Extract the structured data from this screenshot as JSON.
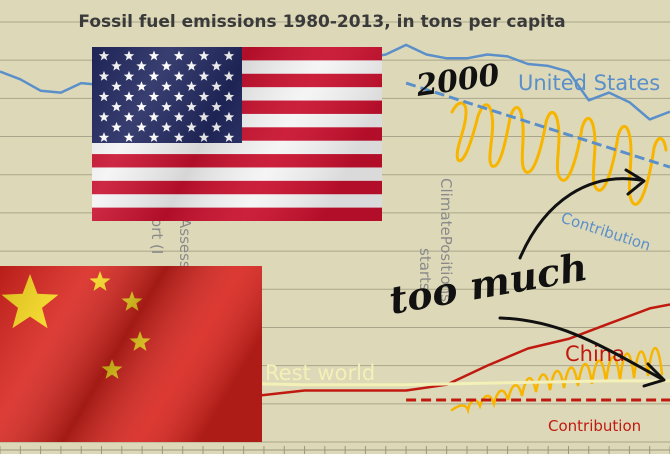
{
  "chart_data": {
    "type": "line",
    "title": "Fossil fuel emissions 1980-2013, in tons per capita",
    "x_range": [
      1980,
      2013
    ],
    "y_range": [
      0,
      22
    ],
    "grid": true,
    "series": [
      {
        "name": "United States",
        "color": "#5b8fc9",
        "x": [
          1980,
          1981,
          1982,
          1983,
          1984,
          1985,
          1986,
          1987,
          1988,
          1989,
          1990,
          1991,
          1992,
          1993,
          1994,
          1995,
          1996,
          1997,
          1998,
          1999,
          2000,
          2001,
          2002,
          2003,
          2004,
          2005,
          2006,
          2007,
          2008,
          2009,
          2010,
          2011,
          2012,
          2013
        ],
        "values": [
          19.4,
          19.0,
          18.4,
          18.3,
          18.8,
          18.7,
          18.8,
          19.3,
          19.9,
          20.0,
          19.7,
          19.4,
          19.5,
          19.6,
          19.8,
          19.8,
          20.1,
          20.3,
          20.1,
          20.3,
          20.8,
          20.3,
          20.1,
          20.1,
          20.3,
          20.2,
          19.8,
          19.7,
          19.4,
          17.9,
          18.3,
          17.8,
          16.9,
          17.3
        ]
      },
      {
        "name": "China",
        "color": "#c01a10",
        "x": [
          1980,
          1985,
          1990,
          1995,
          2000,
          2002,
          2004,
          2006,
          2008,
          2010,
          2012,
          2013
        ],
        "values": [
          1.6,
          1.9,
          2.1,
          2.7,
          2.7,
          3.0,
          4.0,
          4.9,
          5.4,
          6.2,
          7.0,
          7.2
        ]
      },
      {
        "name": "Rest world",
        "color": "#f3f0b8",
        "x": [
          1980,
          1985,
          1990,
          1995,
          2000,
          2005,
          2010,
          2013
        ],
        "values": [
          3.3,
          3.1,
          3.1,
          3.0,
          3.0,
          3.1,
          3.2,
          3.2
        ]
      }
    ],
    "projections": [
      {
        "name": "Contribution",
        "color": "#5b8fc9",
        "style": "dashed",
        "x": [
          2000,
          2013
        ],
        "values": [
          18.8,
          14.4
        ]
      },
      {
        "name": "Contribution",
        "color": "#c01a10",
        "style": "dashed",
        "x": [
          2000,
          2013
        ],
        "values": [
          2.2,
          2.2
        ]
      }
    ],
    "vertical_labels": [
      "Assessment Report (IPCC)",
      "ClimatePositions starts"
    ],
    "annotations": [
      "2000",
      "too much"
    ],
    "text": {
      "us": "United States",
      "china": "China",
      "rest": "Rest world",
      "contrib_us": "Contribution",
      "contrib_china": "Contribution",
      "assess": "Assessment Report (IPCC)",
      "climate": "ClimatePositions starts",
      "year": "2000",
      "too_much": "too much"
    }
  }
}
